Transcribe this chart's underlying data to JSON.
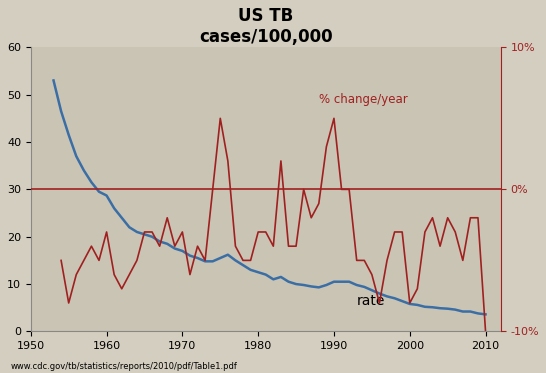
{
  "title": "US TB\ncases/100,000",
  "background_color": "#d4cec0",
  "plot_bg_color": "#cac4b4",
  "xlabel_bottom": "www.cdc.gov/tb/statistics/reports/2010/pdf/Table1.pdf",
  "rate_years": [
    1953,
    1954,
    1955,
    1956,
    1957,
    1958,
    1959,
    1960,
    1961,
    1962,
    1963,
    1964,
    1965,
    1966,
    1967,
    1968,
    1969,
    1970,
    1971,
    1972,
    1973,
    1974,
    1975,
    1976,
    1977,
    1978,
    1979,
    1980,
    1981,
    1982,
    1983,
    1984,
    1985,
    1986,
    1987,
    1988,
    1989,
    1990,
    1991,
    1992,
    1993,
    1994,
    1995,
    1996,
    1997,
    1998,
    1999,
    2000,
    2001,
    2002,
    2003,
    2004,
    2005,
    2006,
    2007,
    2008,
    2009,
    2010
  ],
  "rate_values": [
    53.0,
    46.5,
    41.5,
    37.0,
    34.0,
    31.5,
    29.5,
    28.7,
    26.0,
    24.0,
    22.0,
    21.0,
    20.5,
    20.0,
    19.0,
    18.5,
    17.5,
    17.0,
    16.0,
    15.5,
    14.8,
    14.8,
    15.5,
    16.2,
    15.0,
    14.0,
    13.0,
    12.5,
    12.0,
    11.0,
    11.5,
    10.5,
    10.0,
    9.8,
    9.5,
    9.3,
    9.8,
    10.5,
    10.5,
    10.5,
    9.8,
    9.4,
    8.7,
    8.0,
    7.4,
    7.0,
    6.4,
    5.8,
    5.6,
    5.2,
    5.1,
    4.9,
    4.8,
    4.6,
    4.2,
    4.2,
    3.8,
    3.6
  ],
  "rate_color": "#3a6ea5",
  "rate_label": "rate",
  "pct_years": [
    1954,
    1955,
    1956,
    1957,
    1958,
    1959,
    1960,
    1961,
    1962,
    1963,
    1964,
    1965,
    1966,
    1967,
    1968,
    1969,
    1970,
    1971,
    1972,
    1973,
    1974,
    1975,
    1976,
    1977,
    1978,
    1979,
    1980,
    1981,
    1982,
    1983,
    1984,
    1985,
    1986,
    1987,
    1988,
    1989,
    1990,
    1991,
    1992,
    1993,
    1994,
    1995,
    1996,
    1997,
    1998,
    1999,
    2000,
    2001,
    2002,
    2003,
    2004,
    2005,
    2006,
    2007,
    2008,
    2009,
    2010
  ],
  "pct_values": [
    -5,
    -8,
    -6,
    -5,
    -4,
    -5,
    -3,
    -6,
    -7,
    -6,
    -5,
    -3,
    -3,
    -4,
    -2,
    -4,
    -3,
    -6,
    -4,
    -5,
    0,
    5,
    2,
    -4,
    -5,
    -5,
    -3,
    -3,
    -4,
    2,
    -4,
    -4,
    0,
    -2,
    -1,
    3,
    5,
    0,
    0,
    -5,
    -5,
    -6,
    -8,
    -5,
    -3,
    -3,
    -8,
    -7,
    -3,
    -2,
    -4,
    -2,
    -3,
    -5,
    -2,
    -2,
    -10
  ],
  "pct_color": "#a02020",
  "pct_label": "% change/year",
  "xlim": [
    1950,
    2012
  ],
  "ylim_left": [
    0,
    60
  ],
  "ylim_right": [
    -10,
    10
  ],
  "yticks_left": [
    0,
    10,
    20,
    30,
    40,
    50,
    60
  ],
  "yticks_right": [
    -10,
    0,
    10
  ],
  "xticks": [
    1950,
    1960,
    1970,
    1980,
    1990,
    2000,
    2010
  ],
  "zero_pct_y_left": 30,
  "pct_scale": 1.0
}
